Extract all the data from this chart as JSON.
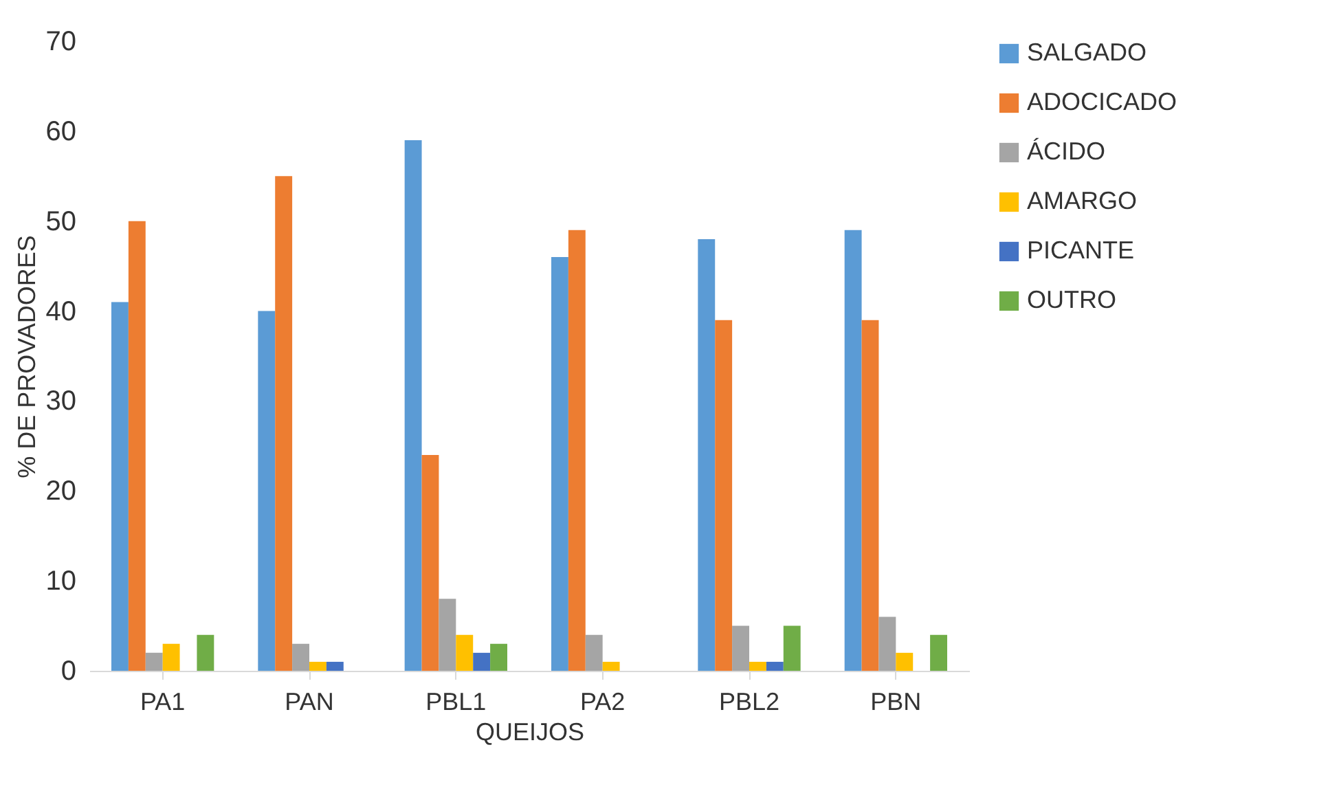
{
  "chart_data": {
    "type": "bar",
    "xlabel": "QUEIJOS",
    "ylabel": "% DE PROVADORES",
    "categories": [
      "PA1",
      "PAN",
      "PBL1",
      "PA2",
      "PBL2",
      "PBN"
    ],
    "series": [
      {
        "name": "SALGADO",
        "color": "#5b9bd5",
        "values": [
          41,
          40,
          59,
          46,
          48,
          49
        ]
      },
      {
        "name": "ADOCICADO",
        "color": "#ed7d31",
        "values": [
          50,
          55,
          24,
          49,
          39,
          39
        ]
      },
      {
        "name": "ÁCIDO",
        "color": "#a5a5a5",
        "values": [
          2,
          3,
          8,
          4,
          5,
          6
        ]
      },
      {
        "name": "AMARGO",
        "color": "#ffc000",
        "values": [
          3,
          1,
          4,
          1,
          1,
          2
        ]
      },
      {
        "name": "PICANTE",
        "color": "#4472c4",
        "values": [
          0,
          1,
          2,
          0,
          1,
          0
        ]
      },
      {
        "name": "OUTRO",
        "color": "#70ad47",
        "values": [
          4,
          0,
          3,
          0,
          5,
          4
        ]
      }
    ],
    "ylim": [
      0,
      70
    ],
    "yticks": [
      0,
      10,
      20,
      30,
      40,
      50,
      60,
      70
    ],
    "grid": false,
    "legend": "right"
  }
}
